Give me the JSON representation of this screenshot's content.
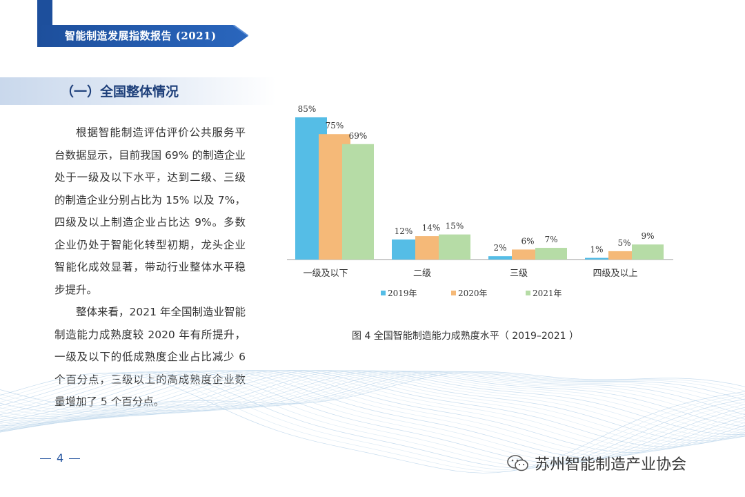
{
  "header": {
    "report_title": "智能制造发展指数报告 (2021)"
  },
  "section": {
    "title": "（一）全国整体情况"
  },
  "body": {
    "paragraph_1": "根据智能制造评估评价公共服务平台数据显示，目前我国 69% 的制造企业处于一级及以下水平，达到二级、三级的制造企业分别占比为 15% 以及 7%，四级及以上制造企业占比达 9%。多数企业仍处于智能化转型初期，龙头企业智能化成效显著，带动行业整体水平稳步提升。",
    "paragraph_2": "整体来看，2021 年全国制造业智能制造能力成熟度较 2020 年有所提升，一级及以下的低成熟度企业占比减少 6 个百分点，三级以上的高成熟度企业数量增加了 5 个百分点。"
  },
  "chart_data": {
    "type": "bar",
    "categories": [
      "一级及以下",
      "二级",
      "三级",
      "四级及以上"
    ],
    "series": [
      {
        "name": "2019年",
        "values": [
          85,
          12,
          2,
          1
        ],
        "labels": [
          "85%",
          "12%",
          "2%",
          "1%"
        ],
        "color": "#55bde6"
      },
      {
        "name": "2020年",
        "values": [
          75,
          14,
          6,
          5
        ],
        "labels": [
          "75%",
          "14%",
          "6%",
          "5%"
        ],
        "color": "#f5b978"
      },
      {
        "name": "2021年",
        "values": [
          69,
          15,
          7,
          9
        ],
        "labels": [
          "69%",
          "15%",
          "7%",
          "9%"
        ],
        "color": "#b6dca6"
      }
    ],
    "ylim": [
      0,
      85
    ],
    "legend_position": "bottom",
    "caption": "图 4  全国智能制造能力成熟度水平（ 2019–2021 ）"
  },
  "footer": {
    "page_number": "4",
    "watermark": "苏州智能制造产业协会"
  },
  "colors": {
    "brand_blue": "#1d4f9c"
  }
}
